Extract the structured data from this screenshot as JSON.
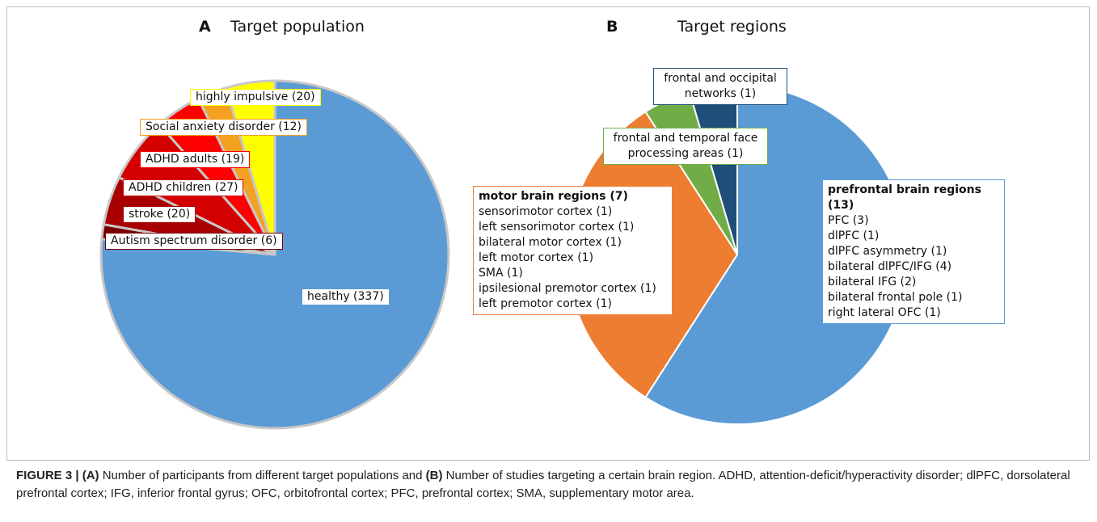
{
  "chart_data": [
    {
      "type": "pie",
      "letter": "A",
      "title": "Target population",
      "categories": [
        "healthy (337)",
        "Autism spectrum disorder (6)",
        "stroke (20)",
        "ADHD children (27)",
        "ADHD adults (19)",
        "Social anxiety disorder (12)",
        "highly impulsive (20)"
      ],
      "values": [
        337,
        6,
        20,
        27,
        19,
        12,
        20
      ],
      "colors": [
        "#5b9bd5",
        "#7a0000",
        "#a80000",
        "#d40000",
        "#ff0000",
        "#f4a020",
        "#ffff00"
      ]
    },
    {
      "type": "pie",
      "letter": "B",
      "title": "Target regions",
      "categories": [
        "prefrontal brain regions (13)",
        "motor brain regions (7)",
        "frontal and temporal face processing areas (1)",
        "frontal and occipital networks (1)"
      ],
      "values": [
        13,
        7,
        1,
        1
      ],
      "colors": [
        "#5b9bd5",
        "#ed7d31",
        "#70ad47",
        "#1f4e79"
      ],
      "details": [
        [
          "PFC (3)",
          "dlPFC (1)",
          "dlPFC asymmetry (1)",
          "bilateral dlPFC/IFG (4)",
          "bilateral IFG (2)",
          "bilateral frontal pole (1)",
          "right lateral OFC (1)"
        ],
        [
          "sensorimotor cortex (1)",
          "left sensorimotor cortex (1)",
          "bilateral motor cortex (1)",
          "left motor cortex (1)",
          "SMA (1)",
          "ipsilesional premotor cortex (1)",
          "left premotor cortex (1)"
        ]
      ]
    }
  ],
  "caption": [
    {
      "text": "FIGURE 3 | ",
      "bold": true
    },
    {
      "text": "(A)",
      "bold": true
    },
    {
      "text": " Number of participants from different target populations and ",
      "bold": false
    },
    {
      "text": "(B)",
      "bold": true
    },
    {
      "text": " Number of studies targeting a certain brain region. ADHD, attention-deficit/hyperactivity disorder; dlPFC, dorsolateral prefrontal cortex; IFG, inferior frontal gyrus; OFC, orbitofrontal cortex; PFC, prefrontal cortex; SMA, supplementary motor area.",
      "bold": false
    }
  ]
}
